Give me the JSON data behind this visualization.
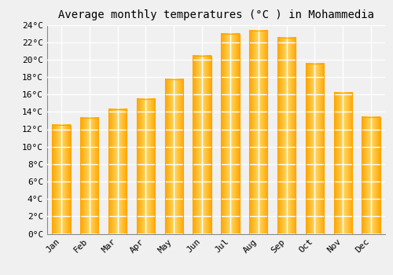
{
  "title": "Average monthly temperatures (°C ) in Mohammedia",
  "months": [
    "Jan",
    "Feb",
    "Mar",
    "Apr",
    "May",
    "Jun",
    "Jul",
    "Aug",
    "Sep",
    "Oct",
    "Nov",
    "Dec"
  ],
  "values": [
    12.5,
    13.3,
    14.3,
    15.5,
    17.7,
    20.4,
    23.0,
    23.3,
    22.5,
    19.5,
    16.2,
    13.4
  ],
  "bar_color_center": "#FFD966",
  "bar_color_edge": "#FFA500",
  "background_color": "#F0F0F0",
  "grid_color": "#FFFFFF",
  "ylim": [
    0,
    24
  ],
  "ytick_step": 2,
  "title_fontsize": 10,
  "tick_fontsize": 8,
  "font_family": "monospace",
  "bar_width": 0.65
}
